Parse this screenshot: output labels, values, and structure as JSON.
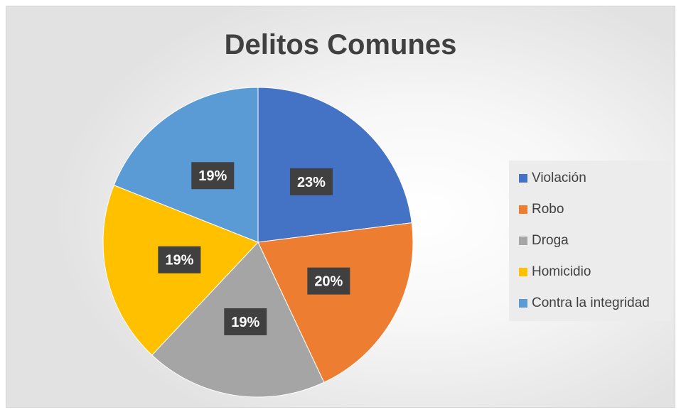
{
  "chart_data": {
    "type": "pie",
    "title": "Delitos Comunes",
    "categories": [
      "Violación",
      "Robo",
      "Droga",
      "Homicidio",
      "Contra la integridad"
    ],
    "values": [
      23,
      20,
      19,
      19,
      19
    ],
    "labels": [
      "23%",
      "20%",
      "19%",
      "19%",
      "19%"
    ],
    "colors": [
      "#4472C4",
      "#ED7D31",
      "#A5A5A5",
      "#FFC000",
      "#5B9BD5"
    ],
    "legend_position": "right"
  }
}
